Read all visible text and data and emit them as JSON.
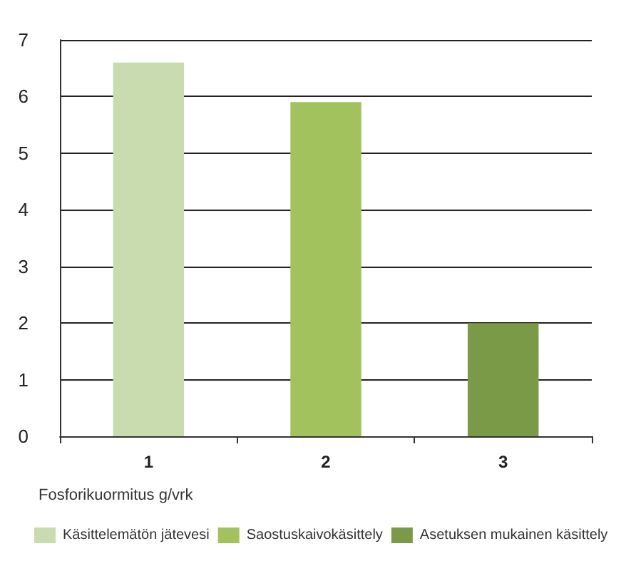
{
  "chart_data": {
    "type": "bar",
    "xlabel": "Fosforikuormitus g/vrk",
    "categories": [
      "1",
      "2",
      "3"
    ],
    "series": [
      {
        "name": "Käsittelemätön jätevesi",
        "color": "#c8dcb0",
        "values": [
          6.6,
          null,
          null
        ]
      },
      {
        "name": "Saostuskaivokäsittely",
        "color": "#a2c25e",
        "values": [
          null,
          5.9,
          null
        ]
      },
      {
        "name": "Asetuksen mukainen käsittely",
        "color": "#7a9a48",
        "values": [
          null,
          null,
          2.0
        ]
      }
    ],
    "ylim": [
      0,
      7
    ],
    "yticks": [
      0,
      1,
      2,
      3,
      4,
      5,
      6,
      7
    ],
    "grid": "y",
    "legend": "bottom"
  }
}
